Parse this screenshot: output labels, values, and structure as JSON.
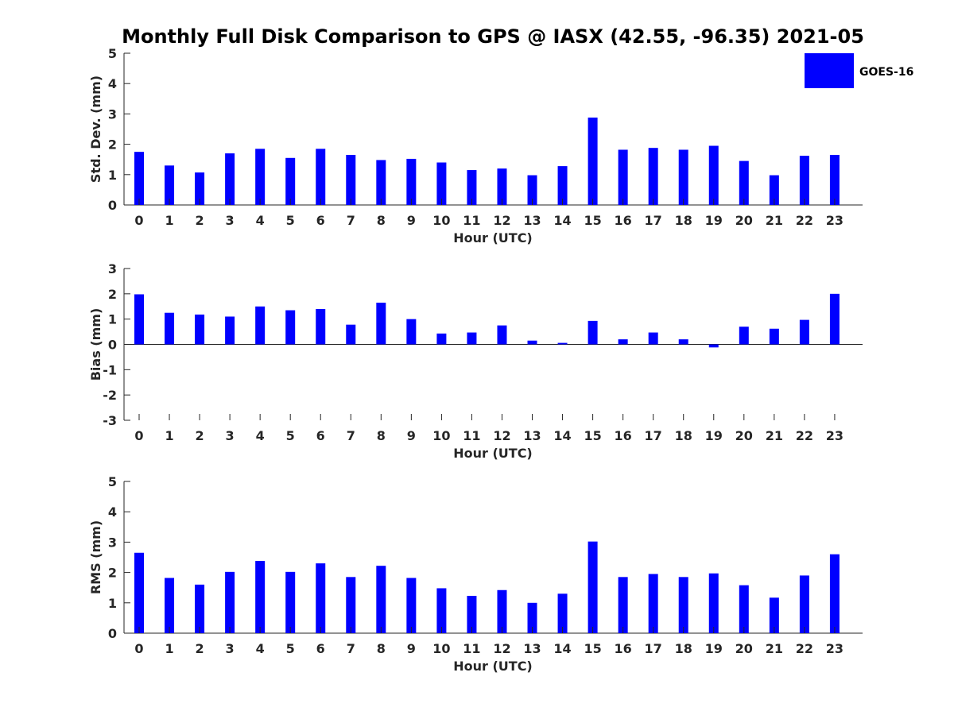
{
  "figure": {
    "title": "Monthly Full Disk Comparison to GPS @ IASX (42.55, -96.35) 2021-05",
    "legend": {
      "label": "GOES-16",
      "color": "#0000ff",
      "placement": "top-right"
    }
  },
  "chart_data": [
    {
      "type": "bar",
      "name": "std-dev",
      "categories": [
        "0",
        "1",
        "2",
        "3",
        "4",
        "5",
        "6",
        "7",
        "8",
        "9",
        "10",
        "11",
        "12",
        "13",
        "14",
        "15",
        "16",
        "17",
        "18",
        "19",
        "20",
        "21",
        "22",
        "23"
      ],
      "series": [
        {
          "name": "GOES-16",
          "color": "#0000ff",
          "values": [
            1.75,
            1.3,
            1.07,
            1.7,
            1.85,
            1.55,
            1.85,
            1.65,
            1.48,
            1.52,
            1.4,
            1.15,
            1.2,
            0.98,
            1.28,
            2.88,
            1.82,
            1.88,
            1.82,
            1.95,
            1.45,
            0.98,
            1.62,
            1.65
          ]
        }
      ],
      "xlabel": "Hour (UTC)",
      "ylabel": "Std. Dev. (mm)",
      "ylim": [
        0,
        5
      ],
      "yticks": [
        "0",
        "1",
        "2",
        "3",
        "4",
        "5"
      ],
      "grid": false
    },
    {
      "type": "bar",
      "name": "bias",
      "categories": [
        "0",
        "1",
        "2",
        "3",
        "4",
        "5",
        "6",
        "7",
        "8",
        "9",
        "10",
        "11",
        "12",
        "13",
        "14",
        "15",
        "16",
        "17",
        "18",
        "19",
        "20",
        "21",
        "22",
        "23"
      ],
      "series": [
        {
          "name": "GOES-16",
          "color": "#0000ff",
          "values": [
            1.98,
            1.25,
            1.18,
            1.1,
            1.5,
            1.35,
            1.4,
            0.78,
            1.65,
            1.0,
            0.43,
            0.47,
            0.75,
            0.15,
            0.06,
            0.93,
            0.2,
            0.47,
            0.2,
            -0.12,
            0.7,
            0.62,
            0.97,
            2.0
          ]
        }
      ],
      "xlabel": "Hour (UTC)",
      "ylabel": "Bias (mm)",
      "ylim": [
        -3,
        3
      ],
      "yticks": [
        "-3",
        "-2",
        "-1",
        "0",
        "1",
        "2",
        "3"
      ],
      "grid": false
    },
    {
      "type": "bar",
      "name": "rms",
      "categories": [
        "0",
        "1",
        "2",
        "3",
        "4",
        "5",
        "6",
        "7",
        "8",
        "9",
        "10",
        "11",
        "12",
        "13",
        "14",
        "15",
        "16",
        "17",
        "18",
        "19",
        "20",
        "21",
        "22",
        "23"
      ],
      "series": [
        {
          "name": "GOES-16",
          "color": "#0000ff",
          "values": [
            2.65,
            1.82,
            1.6,
            2.02,
            2.38,
            2.02,
            2.3,
            1.85,
            2.22,
            1.82,
            1.48,
            1.23,
            1.42,
            1.0,
            1.3,
            3.02,
            1.85,
            1.95,
            1.85,
            1.97,
            1.58,
            1.17,
            1.9,
            2.6
          ]
        }
      ],
      "xlabel": "Hour (UTC)",
      "ylabel": "RMS (mm)",
      "ylim": [
        0,
        5
      ],
      "yticks": [
        "0",
        "1",
        "2",
        "3",
        "4",
        "5"
      ],
      "grid": false
    }
  ]
}
